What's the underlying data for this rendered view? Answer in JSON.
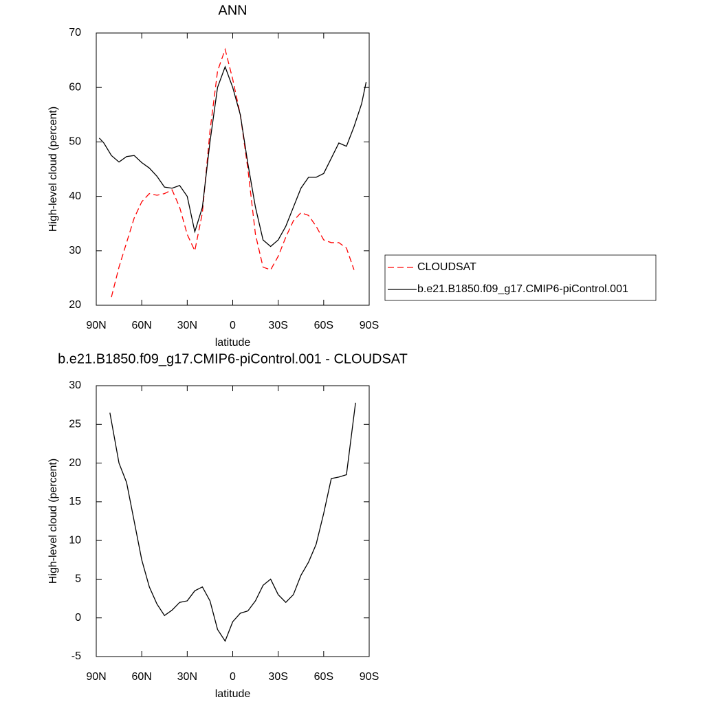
{
  "chart_data": [
    {
      "type": "line",
      "title": "ANN",
      "xlabel": "latitude",
      "ylabel": "High-level cloud (percent)",
      "x": [
        88,
        85,
        80,
        75,
        70,
        65,
        60,
        55,
        50,
        45,
        40,
        35,
        30,
        25,
        20,
        15,
        10,
        5,
        0,
        -5,
        -10,
        -15,
        -20,
        -25,
        -30,
        -35,
        -40,
        -45,
        -50,
        -55,
        -60,
        -65,
        -70,
        -75,
        -80,
        -85,
        -88
      ],
      "series": [
        {
          "name": "CLOUDSAT",
          "color": "#ff0000",
          "dash": "dashed",
          "values": [
            null,
            null,
            21.5,
            27,
            31.5,
            36,
            39,
            40.5,
            40.2,
            40.5,
            41.2,
            38,
            33,
            30,
            37,
            52,
            63,
            67,
            61.5,
            55,
            45,
            33,
            27,
            26.5,
            29,
            32.5,
            35.5,
            37,
            36.5,
            34.5,
            32,
            31.5,
            31.5,
            30.5,
            26.5,
            null,
            null
          ]
        },
        {
          "name": "b.e21.B1850.f09_g17.CMIP6-piControl.001",
          "color": "#000000",
          "dash": "solid",
          "values": [
            50.7,
            49.8,
            47.5,
            46.3,
            47.3,
            47.5,
            46.2,
            45.2,
            43.7,
            41.7,
            41.5,
            42,
            40,
            33.5,
            38,
            50,
            60,
            63.8,
            60,
            55,
            46,
            38,
            32,
            30.8,
            32,
            34.5,
            38,
            41.5,
            43.5,
            43.5,
            44.2,
            47,
            49.8,
            49.2,
            52.8,
            57,
            61
          ]
        }
      ],
      "xlim": [
        90,
        -90
      ],
      "xticks": [
        {
          "value": 90,
          "label": "90N"
        },
        {
          "value": 60,
          "label": "60N"
        },
        {
          "value": 30,
          "label": "30N"
        },
        0,
        {
          "value": -30,
          "label": "30S"
        },
        {
          "value": -60,
          "label": "60S"
        },
        {
          "value": -90,
          "label": "90S"
        }
      ],
      "ylim": [
        20,
        70
      ],
      "yticks": [
        20,
        30,
        40,
        50,
        60,
        70
      ],
      "legend": "right"
    },
    {
      "type": "line",
      "title": "b.e21.B1850.f09_g17.CMIP6-piControl.001 - CLOUDSAT",
      "xlabel": "latitude",
      "ylabel": "High-level cloud (percent)",
      "x": [
        81,
        75,
        70,
        65,
        60,
        55,
        50,
        45,
        40,
        35,
        30,
        25,
        20,
        15,
        10,
        5,
        0,
        -5,
        -10,
        -15,
        -20,
        -25,
        -30,
        -35,
        -40,
        -45,
        -50,
        -55,
        -60,
        -65,
        -70,
        -75,
        -81
      ],
      "series": [
        {
          "color": "#000000",
          "dash": "solid",
          "values": [
            26.5,
            20,
            17.5,
            12.5,
            7.5,
            4,
            1.8,
            0.3,
            1,
            2,
            2.2,
            3.5,
            4,
            2.2,
            -1.5,
            -3,
            -0.5,
            0.6,
            0.9,
            2.2,
            4.2,
            5,
            3,
            2,
            3,
            5.5,
            7.2,
            9.5,
            13.5,
            18,
            18.2,
            18.5,
            27.8
          ]
        }
      ],
      "xlim": [
        90,
        -90
      ],
      "xticks": [
        {
          "value": 90,
          "label": "90N"
        },
        {
          "value": 60,
          "label": "60N"
        },
        {
          "value": 30,
          "label": "30N"
        },
        0,
        {
          "value": -30,
          "label": "30S"
        },
        {
          "value": -60,
          "label": "60S"
        },
        {
          "value": -90,
          "label": "90S"
        }
      ],
      "ylim": [
        -5,
        30
      ],
      "yticks": [
        -5,
        0,
        5,
        10,
        15,
        20,
        25,
        30
      ]
    }
  ]
}
